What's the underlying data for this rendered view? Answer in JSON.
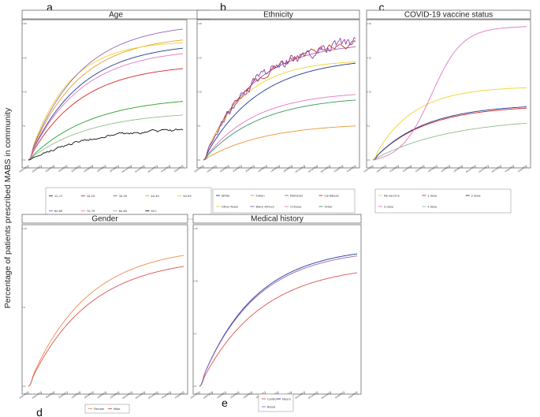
{
  "figure": {
    "ylabel": "Percentage of patients prescribed MABS in community",
    "x_ticks": [
      "16dec2021",
      "26dec2021",
      "05jan2022",
      "15jan2022",
      "25jan2022",
      "04feb2022",
      "14feb2022",
      "24feb2022",
      "06mar2022",
      "16mar2022",
      "26mar2022",
      "05apr2022",
      "15apr2022"
    ]
  },
  "chart_data": [
    {
      "id": "age",
      "letter": "a",
      "type": "line",
      "title": "Age",
      "ylim": [
        0,
        20
      ],
      "yticks": [
        "0",
        "5",
        "10",
        "15",
        "20"
      ],
      "legend_cols": 5,
      "series": [
        {
          "name": "12-17",
          "color": "#1f3a93",
          "final": 16.4,
          "rate": 3.0
        },
        {
          "name": "18-29",
          "color": "#d62728",
          "final": 13.4,
          "rate": 3.0
        },
        {
          "name": "30-39",
          "color": "#2ca02c",
          "final": 8.6,
          "rate": 2.5
        },
        {
          "name": "40-49",
          "color": "#e6a030",
          "final": 17.6,
          "rate": 3.2
        },
        {
          "name": "50-59",
          "color": "#f2d32c",
          "final": 17.2,
          "rate": 4.0
        },
        {
          "name": "60-69",
          "color": "#9467bd",
          "final": 19.2,
          "rate": 3.1
        },
        {
          "name": "70-79",
          "color": "#e377c2",
          "final": 15.6,
          "rate": 3.0
        },
        {
          "name": "80-89",
          "color": "#8fbc8f",
          "final": 6.6,
          "rate": 2.5
        },
        {
          "name": "90+",
          "color": "#111111",
          "final": 4.4,
          "rate": 2.5,
          "noise": 0.35
        }
      ]
    },
    {
      "id": "ethnicity",
      "letter": "b",
      "type": "line",
      "title": "Ethnicity",
      "ylim": [
        0,
        20
      ],
      "yticks": [
        "0",
        "5",
        "10",
        "15",
        "20"
      ],
      "legend_cols": 4,
      "series": [
        {
          "name": "White",
          "color": "#1f3a93",
          "final": 14.2,
          "rate": 2.8
        },
        {
          "name": "Indian",
          "color": "#e8953a",
          "final": 5.0,
          "rate": 2.5
        },
        {
          "name": "Pakistani",
          "color": "#9467bd",
          "final": 16.6,
          "rate": 3.2
        },
        {
          "name": "Caribbean",
          "color": "#c0392b",
          "final": 17.0,
          "rate": 3.0,
          "noise": 0.8
        },
        {
          "name": "Other Asian",
          "color": "#f2d32c",
          "final": 14.4,
          "rate": 3.8
        },
        {
          "name": "Black African",
          "color": "#8e44ad",
          "final": 17.2,
          "rate": 2.9,
          "noise": 1.3
        },
        {
          "name": "Chinese",
          "color": "#e377c2",
          "final": 9.6,
          "rate": 3.0
        },
        {
          "name": "Other",
          "color": "#3a9a5a",
          "final": 8.8,
          "rate": 2.7
        }
      ]
    },
    {
      "id": "vaccine",
      "letter": "c",
      "type": "line",
      "title": "COVID-19 vaccine status",
      "ylim": [
        0,
        20
      ],
      "yticks": [
        "0",
        "5",
        "10",
        "15",
        "20"
      ],
      "legend_cols": 3,
      "series": [
        {
          "name": "No vaccine",
          "color": "#f2d32c",
          "final": 10.6,
          "rate": 4.0
        },
        {
          "name": "1 dose",
          "color": "#d62728",
          "final": 7.6,
          "rate": 3.0
        },
        {
          "name": "2 dose",
          "color": "#1f3a93",
          "final": 7.8,
          "rate": 3.0
        },
        {
          "name": "3 dose",
          "color": "#e377c2",
          "final": 19.6,
          "rate": 3.0,
          "shape": "sigmoid"
        },
        {
          "name": "4 dose",
          "color": "#8fbc8f",
          "final": 5.4,
          "rate": 2.0
        }
      ]
    },
    {
      "id": "gender",
      "letter": "d",
      "type": "line",
      "title": "Gender",
      "ylim": [
        0,
        10
      ],
      "yticks": [
        "0",
        "5",
        "10"
      ],
      "legend_cols": 2,
      "series": [
        {
          "name": "Female",
          "color": "#f08a4b",
          "final": 8.3,
          "rate": 2.7
        },
        {
          "name": "Male",
          "color": "#d9534f",
          "final": 7.6,
          "rate": 2.6
        }
      ]
    },
    {
      "id": "medical",
      "letter": "e",
      "type": "line",
      "title": "Medical history",
      "ylim": [
        0,
        15
      ],
      "yticks": [
        "0",
        "5",
        "10",
        "15"
      ],
      "legend_cols": 2,
      "series": [
        {
          "name": "Cardio",
          "color": "#d9534f",
          "final": 10.8,
          "rate": 2.6
        },
        {
          "name": "Neuro",
          "color": "#1f3a93",
          "final": 12.6,
          "rate": 2.9
        },
        {
          "name": "Blood",
          "color": "#9467bd",
          "final": 12.4,
          "rate": 2.9
        }
      ]
    }
  ]
}
